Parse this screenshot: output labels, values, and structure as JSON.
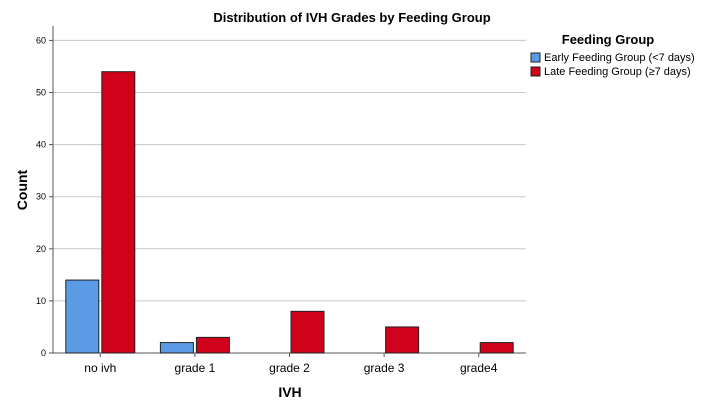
{
  "chart_data": {
    "type": "bar",
    "title": "Distribution of IVH Grades by Feeding  Group",
    "xlabel": "IVH",
    "ylabel": "Count",
    "categories": [
      "no ivh",
      "grade 1",
      "grade 2",
      "grade 3",
      "grade4"
    ],
    "series": [
      {
        "name": "Early Feeding Group (<7 days)",
        "values": [
          14,
          2,
          0,
          0,
          0
        ],
        "color": "#5b9be6"
      },
      {
        "name": "Late Feeding Group (≥7 days)",
        "values": [
          54,
          3,
          8,
          5,
          2
        ],
        "color": "#d0021b"
      }
    ],
    "ylim": [
      0,
      62
    ],
    "yticks": [
      0,
      10,
      20,
      30,
      40,
      50,
      60
    ],
    "grid": true,
    "legend": {
      "title": "Feeding Group",
      "position": "top-right"
    }
  }
}
